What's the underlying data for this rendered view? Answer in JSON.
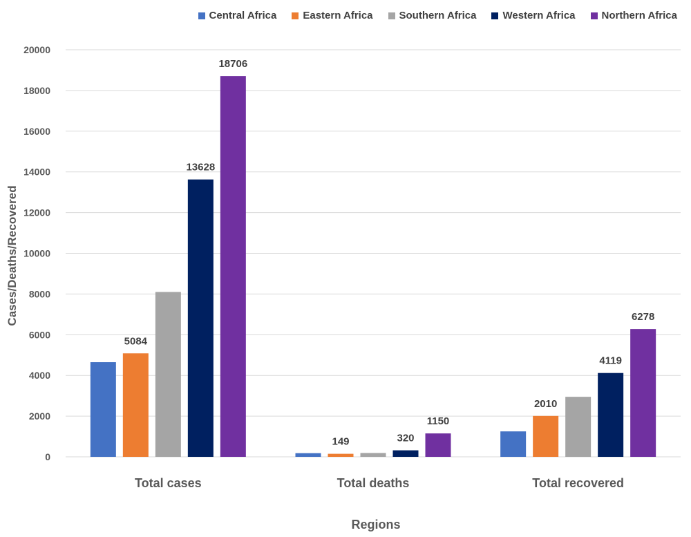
{
  "chart_data": {
    "type": "bar",
    "categories": [
      "Total cases",
      "Total deaths",
      "Total recovered"
    ],
    "series": [
      {
        "name": "Central Africa",
        "color": "#4472C4",
        "values": [
          4650,
          180,
          1250
        ]
      },
      {
        "name": "Eastern Africa",
        "color": "#ED7D31",
        "values": [
          5084,
          149,
          2010
        ]
      },
      {
        "name": "Southern Africa",
        "color": "#A5A5A5",
        "values": [
          8100,
          190,
          2950
        ]
      },
      {
        "name": "Western Africa",
        "color": "#002060",
        "values": [
          13628,
          320,
          4119
        ]
      },
      {
        "name": "Northern Africa",
        "color": "#7030A0",
        "values": [
          18706,
          1150,
          6278
        ]
      }
    ],
    "data_labels": [
      [
        null,
        null,
        null
      ],
      [
        "5084",
        "149",
        "2010"
      ],
      [
        null,
        null,
        null
      ],
      [
        "13628",
        "320",
        "4119"
      ],
      [
        "18706",
        "1150",
        "6278"
      ]
    ],
    "xlabel": "Regions",
    "ylabel": "Cases/Deaths/Recovered",
    "ylim": [
      0,
      20000
    ],
    "yticks": [
      0,
      2000,
      4000,
      6000,
      8000,
      10000,
      12000,
      14000,
      16000,
      18000,
      20000
    ],
    "grid": true,
    "legend_position": "top"
  }
}
